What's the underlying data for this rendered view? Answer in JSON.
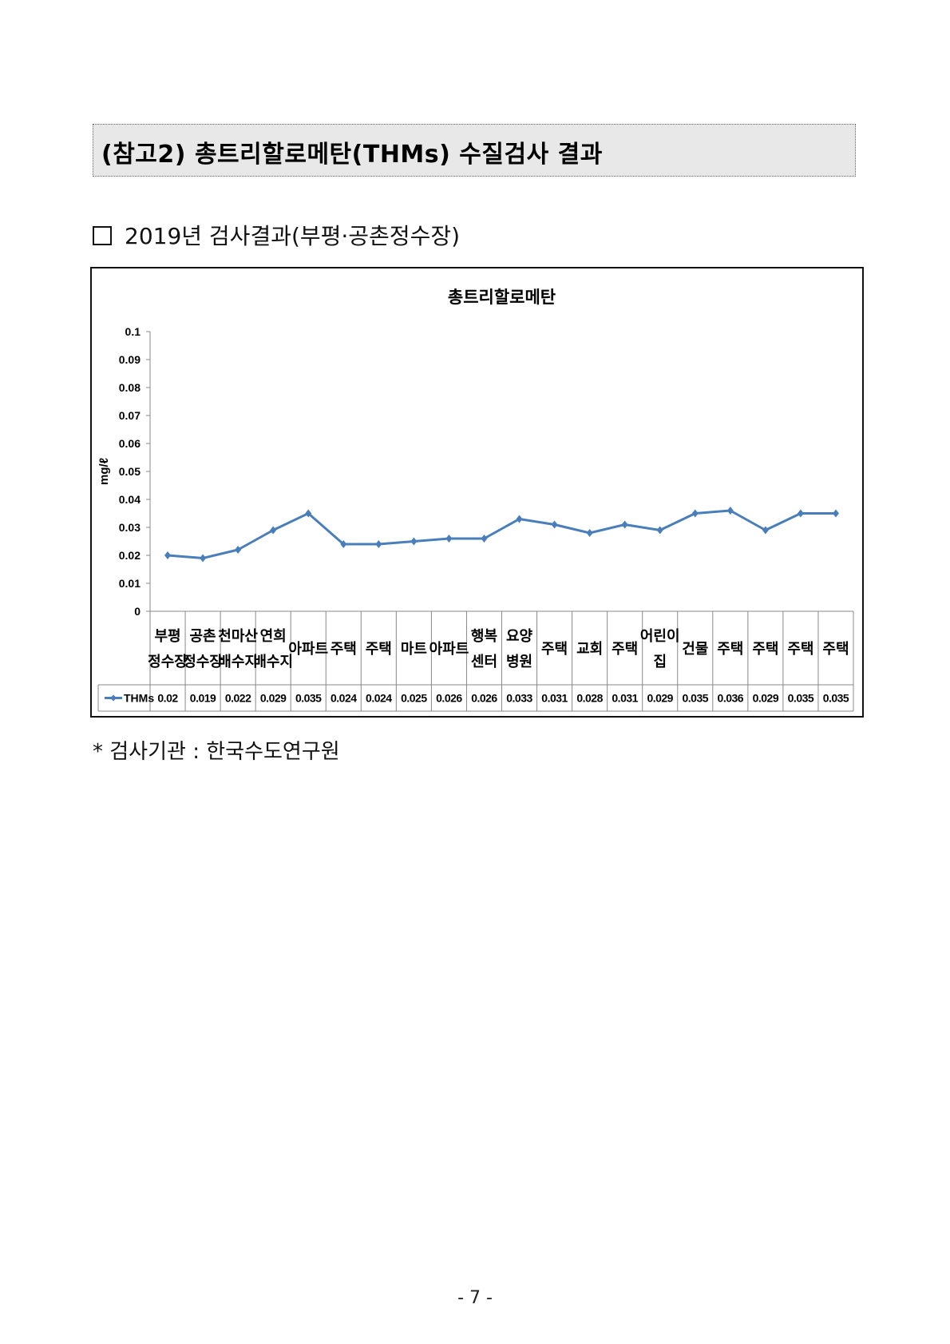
{
  "header": {
    "title": "(참고2) 총트리할로메탄(THMs) 수질검사 결과"
  },
  "section": {
    "heading": "2019년  검사결과(부평·공촌정수장)"
  },
  "chart_data": {
    "type": "line",
    "title": "총트리할로메탄",
    "ylabel": "mg/ℓ",
    "ylim": [
      0,
      0.1
    ],
    "yticks": [
      "0",
      "0.01",
      "0.02",
      "0.03",
      "0.04",
      "0.05",
      "0.06",
      "0.07",
      "0.08",
      "0.09",
      "0.1"
    ],
    "categories": [
      [
        "부평",
        "정수장"
      ],
      [
        "공촌",
        "정수장"
      ],
      [
        "천마산",
        "배수지"
      ],
      [
        "연희",
        "배수지"
      ],
      [
        "아파트"
      ],
      [
        "주택"
      ],
      [
        "주택"
      ],
      [
        "마트"
      ],
      [
        "아파트"
      ],
      [
        "행복",
        "센터"
      ],
      [
        "요양",
        "병원"
      ],
      [
        "주택"
      ],
      [
        "교회"
      ],
      [
        "주택"
      ],
      [
        "어린이",
        "집"
      ],
      [
        "건물"
      ],
      [
        "주택"
      ],
      [
        "주택"
      ],
      [
        "주택"
      ],
      [
        "주택"
      ]
    ],
    "series": [
      {
        "name": "THMs",
        "color": "#4a7ebb",
        "values": [
          0.02,
          0.019,
          0.022,
          0.029,
          0.035,
          0.024,
          0.024,
          0.025,
          0.026,
          0.026,
          0.033,
          0.031,
          0.028,
          0.031,
          0.029,
          0.035,
          0.036,
          0.029,
          0.035,
          0.035
        ],
        "labels": [
          "0.02",
          "0.019",
          "0.022",
          "0.029",
          "0.035",
          "0.024",
          "0.024",
          "0.025",
          "0.026",
          "0.026",
          "0.033",
          "0.031",
          "0.028",
          "0.031",
          "0.029",
          "0.035",
          "0.036",
          "0.029",
          "0.035",
          "0.035"
        ]
      }
    ],
    "grid": false,
    "legend": "data-table"
  },
  "footer": {
    "note": "*  검사기관 : 한국수도연구원",
    "page": "- 7 -"
  }
}
